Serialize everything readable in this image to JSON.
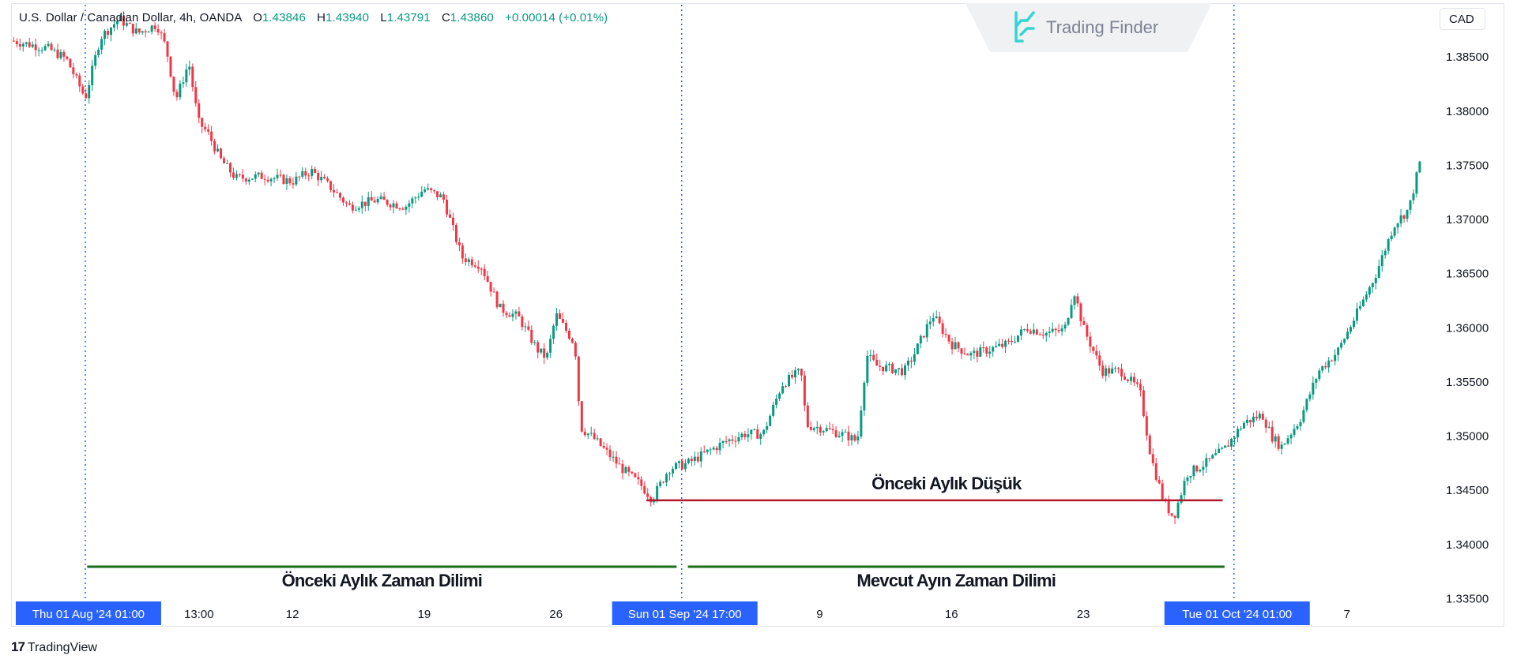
{
  "header": {
    "symbol": "U.S. Dollar / Canadian Dollar, 4h, OANDA",
    "open_label": "O",
    "open": "1.43846",
    "high_label": "H",
    "high": "1.43940",
    "low_label": "L",
    "low": "1.43791",
    "close_label": "C",
    "close": "1.43860",
    "change": "+0.00014 (+0.01%)"
  },
  "watermark": {
    "text": "Trading Finder",
    "icon": "trading-finder-logo-icon"
  },
  "currency_button": "CAD",
  "footer_brand": {
    "mark": "17",
    "text": "TradingView",
    "icon": "tradingview-logo-icon"
  },
  "colors": {
    "up": "#089981",
    "down": "#f23645",
    "level_line": "#b2182b",
    "period_line": "#1b6e1b",
    "separator": "#2962ff",
    "date_badge": "#2962ff"
  },
  "chart_data": {
    "type": "candlestick",
    "timeframe": "4h",
    "ylim": [
      1.335,
      1.39
    ],
    "y_ticks": [
      "1.38500",
      "1.38000",
      "1.37500",
      "1.37000",
      "1.36500",
      "1.36000",
      "1.35500",
      "1.35000",
      "1.34500",
      "1.34000",
      "1.33500"
    ],
    "x_tick_labels": [
      {
        "label": "Thu 01 Aug '24   01:00",
        "day": 0,
        "highlight": true
      },
      {
        "label": "13:00",
        "day": 0.5,
        "highlight": false
      },
      {
        "label": "12",
        "day": 11,
        "highlight": false
      },
      {
        "label": "19",
        "day": 18,
        "highlight": false
      },
      {
        "label": "26",
        "day": 25,
        "highlight": false
      },
      {
        "label": "Sun 01 Sep '24   17:00",
        "day": 31.67,
        "highlight": true
      },
      {
        "label": "9",
        "day": 39,
        "highlight": false
      },
      {
        "label": "16",
        "day": 46,
        "highlight": false
      },
      {
        "label": "23",
        "day": 53,
        "highlight": false
      },
      {
        "label": "Tue 01 Oct '24   01:00",
        "day": 61,
        "highlight": true
      },
      {
        "label": "7",
        "day": 67,
        "highlight": false
      }
    ],
    "x_range_days": [
      -3.9,
      71.5
    ],
    "month_separators_days": [
      0,
      31.67,
      61
    ],
    "anchors": [
      {
        "day": -3.9,
        "price": 1.3865
      },
      {
        "day": -2,
        "price": 1.3858
      },
      {
        "day": -1,
        "price": 1.3848
      },
      {
        "day": 0,
        "price": 1.3812
      },
      {
        "day": 0.8,
        "price": 1.3868
      },
      {
        "day": 1.8,
        "price": 1.3885
      },
      {
        "day": 2.8,
        "price": 1.3872
      },
      {
        "day": 3.8,
        "price": 1.388
      },
      {
        "day": 4.3,
        "price": 1.3858
      },
      {
        "day": 4.8,
        "price": 1.381
      },
      {
        "day": 5.5,
        "price": 1.3845
      },
      {
        "day": 6,
        "price": 1.379
      },
      {
        "day": 6.5,
        "price": 1.378
      },
      {
        "day": 7.2,
        "price": 1.3755
      },
      {
        "day": 8,
        "price": 1.3738
      },
      {
        "day": 9.5,
        "price": 1.374
      },
      {
        "day": 11,
        "price": 1.3735
      },
      {
        "day": 12,
        "price": 1.3745
      },
      {
        "day": 13,
        "price": 1.373
      },
      {
        "day": 14,
        "price": 1.3712
      },
      {
        "day": 15.5,
        "price": 1.3718
      },
      {
        "day": 17,
        "price": 1.3712
      },
      {
        "day": 18,
        "price": 1.3728
      },
      {
        "day": 19,
        "price": 1.372
      },
      {
        "day": 20,
        "price": 1.3665
      },
      {
        "day": 21,
        "price": 1.3658
      },
      {
        "day": 22,
        "price": 1.3618
      },
      {
        "day": 23,
        "price": 1.361
      },
      {
        "day": 24,
        "price": 1.358
      },
      {
        "day": 24.5,
        "price": 1.3572
      },
      {
        "day": 25,
        "price": 1.3612
      },
      {
        "day": 26,
        "price": 1.3585
      },
      {
        "day": 26.3,
        "price": 1.3508
      },
      {
        "day": 27,
        "price": 1.3498
      },
      {
        "day": 28.5,
        "price": 1.347
      },
      {
        "day": 29.5,
        "price": 1.3455
      },
      {
        "day": 30.1,
        "price": 1.3442
      },
      {
        "day": 31,
        "price": 1.347
      },
      {
        "day": 32,
        "price": 1.3475
      },
      {
        "day": 33,
        "price": 1.3485
      },
      {
        "day": 34,
        "price": 1.3495
      },
      {
        "day": 35,
        "price": 1.3502
      },
      {
        "day": 36,
        "price": 1.3502
      },
      {
        "day": 37,
        "price": 1.3548
      },
      {
        "day": 38,
        "price": 1.356
      },
      {
        "day": 38.3,
        "price": 1.351
      },
      {
        "day": 39,
        "price": 1.3508
      },
      {
        "day": 40.5,
        "price": 1.35
      },
      {
        "day": 41,
        "price": 1.3495
      },
      {
        "day": 41.5,
        "price": 1.3575
      },
      {
        "day": 42,
        "price": 1.3565
      },
      {
        "day": 43.5,
        "price": 1.356
      },
      {
        "day": 44,
        "price": 1.3575
      },
      {
        "day": 45,
        "price": 1.3612
      },
      {
        "day": 46,
        "price": 1.3585
      },
      {
        "day": 47,
        "price": 1.3575
      },
      {
        "day": 48,
        "price": 1.358
      },
      {
        "day": 49,
        "price": 1.3585
      },
      {
        "day": 50,
        "price": 1.36
      },
      {
        "day": 51,
        "price": 1.3595
      },
      {
        "day": 52,
        "price": 1.3598
      },
      {
        "day": 52.5,
        "price": 1.3635
      },
      {
        "day": 53,
        "price": 1.36
      },
      {
        "day": 54,
        "price": 1.356
      },
      {
        "day": 55,
        "price": 1.356
      },
      {
        "day": 56,
        "price": 1.3542
      },
      {
        "day": 56.6,
        "price": 1.348
      },
      {
        "day": 57.3,
        "price": 1.3438
      },
      {
        "day": 57.8,
        "price": 1.3425
      },
      {
        "day": 58.5,
        "price": 1.3465
      },
      {
        "day": 59.5,
        "price": 1.3475
      },
      {
        "day": 60.5,
        "price": 1.3488
      },
      {
        "day": 61.5,
        "price": 1.3512
      },
      {
        "day": 62.5,
        "price": 1.352
      },
      {
        "day": 63,
        "price": 1.35
      },
      {
        "day": 63.5,
        "price": 1.349
      },
      {
        "day": 64.5,
        "price": 1.3515
      },
      {
        "day": 65.5,
        "price": 1.356
      },
      {
        "day": 66.5,
        "price": 1.3578
      },
      {
        "day": 67.5,
        "price": 1.3612
      },
      {
        "day": 68.5,
        "price": 1.3648
      },
      {
        "day": 69.5,
        "price": 1.3695
      },
      {
        "day": 70.3,
        "price": 1.371
      },
      {
        "day": 71,
        "price": 1.3762
      }
    ],
    "levels": [
      {
        "name": "previous-monthly-low",
        "price": 1.34408,
        "from_day": 29.8,
        "to_day": 60.4,
        "label": "Önceki Aylık Düşük"
      }
    ],
    "period_brackets": [
      {
        "name": "previous-month-range",
        "from_day": 0.1,
        "to_day": 31.4,
        "label": "Önceki Aylık Zaman Dilimi"
      },
      {
        "name": "current-month-range",
        "from_day": 32.0,
        "to_day": 60.5,
        "label": "Mevcut Ayın Zaman Dilimi"
      }
    ]
  }
}
